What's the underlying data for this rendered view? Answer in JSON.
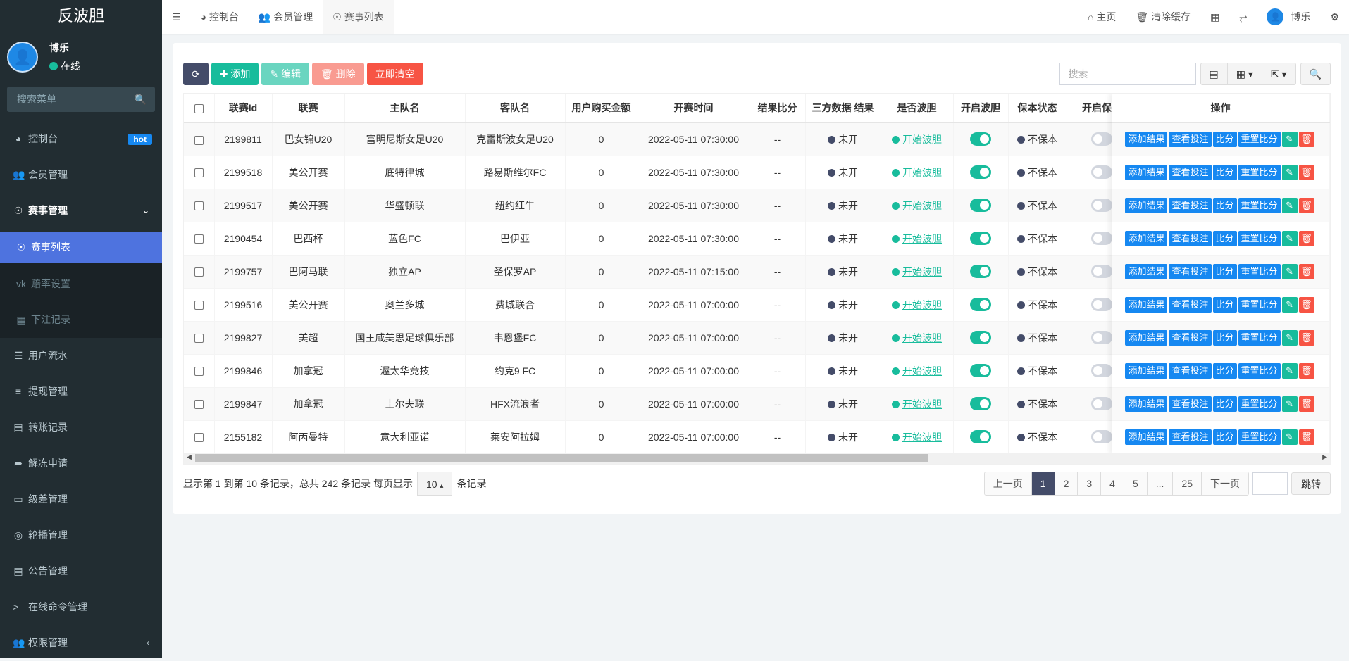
{
  "app": {
    "title": "反波胆"
  },
  "user": {
    "name": "博乐",
    "status": "在线"
  },
  "sidebar": {
    "search_placeholder": "搜索菜单",
    "items": [
      {
        "label": "控制台",
        "icon": "dashboard-icon",
        "badge": "hot"
      },
      {
        "label": "会员管理",
        "icon": "users-icon"
      },
      {
        "label": "赛事管理",
        "icon": "life-ring-icon",
        "open": true,
        "children": [
          {
            "label": "赛事列表",
            "icon": "life-ring-icon",
            "active": true
          },
          {
            "label": "赔率设置",
            "icon": "vk-icon"
          },
          {
            "label": "下注记录",
            "icon": "calendar-icon"
          }
        ]
      },
      {
        "label": "用户流水",
        "icon": "bars-icon"
      },
      {
        "label": "提现管理",
        "icon": "indent-icon"
      },
      {
        "label": "转账记录",
        "icon": "translate-icon"
      },
      {
        "label": "解冻申请",
        "icon": "share-square-icon"
      },
      {
        "label": "级差管理",
        "icon": "window-icon"
      },
      {
        "label": "轮播管理",
        "icon": "slideshow-icon"
      },
      {
        "label": "公告管理",
        "icon": "newspaper-icon"
      },
      {
        "label": "在线命令管理",
        "icon": "terminal-icon"
      },
      {
        "label": "权限管理",
        "icon": "group-icon"
      }
    ]
  },
  "header": {
    "tabs": [
      {
        "label": "控制台"
      },
      {
        "label": "会员管理"
      },
      {
        "label": "赛事列表",
        "active": true
      }
    ],
    "right": {
      "home": "主页",
      "clear_cache": "清除缓存",
      "user": "博乐"
    }
  },
  "toolbar": {
    "add": "添加",
    "edit": "编辑",
    "delete": "删除",
    "clear": "立即清空",
    "search_placeholder": "搜索"
  },
  "colors": {
    "primary": "#444c69",
    "success": "#18bc9c",
    "danger": "#f75444",
    "info": "#1688f1",
    "sidebar": "#222d32",
    "active": "#4e73df"
  },
  "table": {
    "columns": [
      "联赛Id",
      "联赛",
      "主队名",
      "客队名",
      "用户购买金额",
      "开赛时间",
      "结果比分",
      "三方数据 结果",
      "是否波胆",
      "开启波胆",
      "保本状态",
      "开启保本",
      "操作"
    ],
    "actions": [
      "添加结果",
      "查看投注",
      "比分",
      "重置比分"
    ],
    "rows": [
      {
        "id": "2199811",
        "league": "巴女锦U20",
        "home": "富明尼斯女足U20",
        "away": "克雷斯波女足U20",
        "amount": "0",
        "time": "2022-05-11 07:30:00",
        "score": "--",
        "third": "未开",
        "bodan": "开始波胆",
        "bodan_on": true,
        "baoben": "不保本",
        "baoben_on": false
      },
      {
        "id": "2199518",
        "league": "美公开赛",
        "home": "底特律城",
        "away": "路易斯维尔FC",
        "amount": "0",
        "time": "2022-05-11 07:30:00",
        "score": "--",
        "third": "未开",
        "bodan": "开始波胆",
        "bodan_on": true,
        "baoben": "不保本",
        "baoben_on": false
      },
      {
        "id": "2199517",
        "league": "美公开赛",
        "home": "华盛顿联",
        "away": "纽约红牛",
        "amount": "0",
        "time": "2022-05-11 07:30:00",
        "score": "--",
        "third": "未开",
        "bodan": "开始波胆",
        "bodan_on": true,
        "baoben": "不保本",
        "baoben_on": false
      },
      {
        "id": "2190454",
        "league": "巴西杯",
        "home": "蓝色FC",
        "away": "巴伊亚",
        "amount": "0",
        "time": "2022-05-11 07:30:00",
        "score": "--",
        "third": "未开",
        "bodan": "开始波胆",
        "bodan_on": true,
        "baoben": "不保本",
        "baoben_on": false
      },
      {
        "id": "2199757",
        "league": "巴阿马联",
        "home": "独立AP",
        "away": "圣保罗AP",
        "amount": "0",
        "time": "2022-05-11 07:15:00",
        "score": "--",
        "third": "未开",
        "bodan": "开始波胆",
        "bodan_on": true,
        "baoben": "不保本",
        "baoben_on": false
      },
      {
        "id": "2199516",
        "league": "美公开赛",
        "home": "奥兰多城",
        "away": "费城联合",
        "amount": "0",
        "time": "2022-05-11 07:00:00",
        "score": "--",
        "third": "未开",
        "bodan": "开始波胆",
        "bodan_on": true,
        "baoben": "不保本",
        "baoben_on": false
      },
      {
        "id": "2199827",
        "league": "美超",
        "home": "国王咸美思足球俱乐部",
        "away": "韦恩堡FC",
        "amount": "0",
        "time": "2022-05-11 07:00:00",
        "score": "--",
        "third": "未开",
        "bodan": "开始波胆",
        "bodan_on": true,
        "baoben": "不保本",
        "baoben_on": false
      },
      {
        "id": "2199846",
        "league": "加拿冠",
        "home": "渥太华竞技",
        "away": "约克9 FC",
        "amount": "0",
        "time": "2022-05-11 07:00:00",
        "score": "--",
        "third": "未开",
        "bodan": "开始波胆",
        "bodan_on": true,
        "baoben": "不保本",
        "baoben_on": false
      },
      {
        "id": "2199847",
        "league": "加拿冠",
        "home": "圭尔夫联",
        "away": "HFX流浪者",
        "amount": "0",
        "time": "2022-05-11 07:00:00",
        "score": "--",
        "third": "未开",
        "bodan": "开始波胆",
        "bodan_on": true,
        "baoben": "不保本",
        "baoben_on": false
      },
      {
        "id": "2155182",
        "league": "阿丙曼特",
        "home": "意大利亚诺",
        "away": "莱安阿拉姆",
        "amount": "0",
        "time": "2022-05-11 07:00:00",
        "score": "--",
        "third": "未开",
        "bodan": "开始波胆",
        "bodan_on": true,
        "baoben": "不保本",
        "baoben_on": false
      }
    ]
  },
  "pagination": {
    "summary_prefix": "显示第 1 到第 10 条记录，总共 242 条记录 每页显示",
    "page_size": "10",
    "summary_suffix": "条记录",
    "prev": "上一页",
    "pages": [
      "1",
      "2",
      "3",
      "4",
      "5",
      "...",
      "25"
    ],
    "current": "1",
    "next": "下一页",
    "jump": "跳转"
  }
}
